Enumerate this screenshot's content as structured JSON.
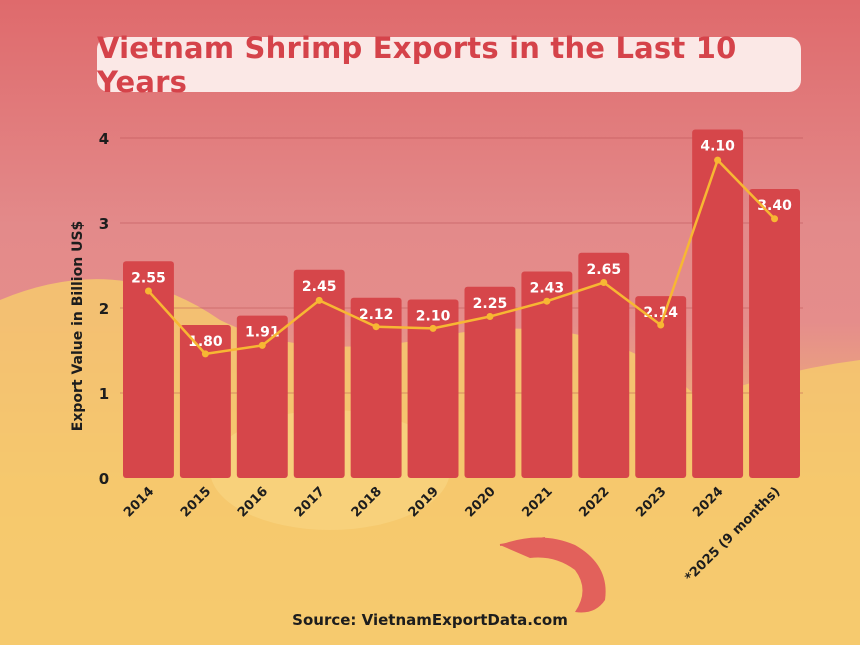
{
  "title": "Vietnam Shrimp Exports in the Last 10 Years",
  "source": "Source: VietnamExportData.com",
  "colors": {
    "bar": "#d6464a",
    "line": "#f7b733",
    "title": "#d5434a",
    "title_bg": "#fbe8e6"
  },
  "chart_data": {
    "type": "bar",
    "title": "Vietnam Shrimp Exports in the Last 10 Years",
    "xlabel": "",
    "ylabel": "Export Value in Billion US$",
    "ylim": [
      0,
      4
    ],
    "yticks": [
      0,
      1,
      2,
      3,
      4
    ],
    "grid": true,
    "categories": [
      "2014",
      "2015",
      "2016",
      "2017",
      "2018",
      "2019",
      "2020",
      "2021",
      "2022",
      "2023",
      "2024",
      "*2025 (9 months)"
    ],
    "values": [
      2.55,
      1.8,
      1.91,
      2.45,
      2.12,
      2.1,
      2.25,
      2.43,
      2.65,
      2.14,
      4.1,
      3.4
    ],
    "data_labels": [
      "2.55",
      "1.80",
      "1.91",
      "2.45",
      "2.12",
      "2.10",
      "2.25",
      "2.43",
      "2.65",
      "2.14",
      "4.10",
      "3.40"
    ],
    "line_overlay": [
      2.2,
      1.46,
      1.56,
      2.09,
      1.78,
      1.76,
      1.9,
      2.08,
      2.3,
      1.8,
      3.74,
      3.05
    ]
  }
}
